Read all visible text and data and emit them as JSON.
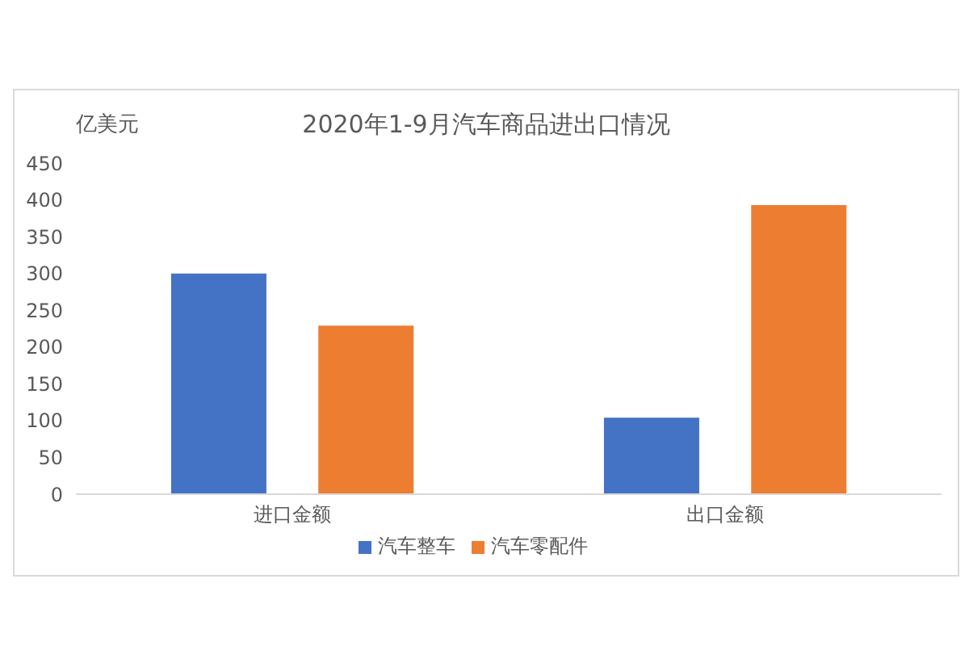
{
  "chart_data": {
    "type": "bar",
    "title": "2020年1-9月汽车商品进出口情况",
    "ylabel": "亿美元",
    "categories": [
      "进口金额",
      "出口金额"
    ],
    "series": [
      {
        "name": "汽车整车",
        "color": "#4472c4",
        "values": [
          300,
          104
        ]
      },
      {
        "name": "汽车零配件",
        "color": "#ed7d31",
        "values": [
          229,
          393
        ]
      }
    ],
    "ylim": [
      0,
      450
    ],
    "yticks": [
      0,
      50,
      100,
      150,
      200,
      250,
      300,
      350,
      400,
      450
    ],
    "grid": false,
    "legend": "bottom"
  }
}
